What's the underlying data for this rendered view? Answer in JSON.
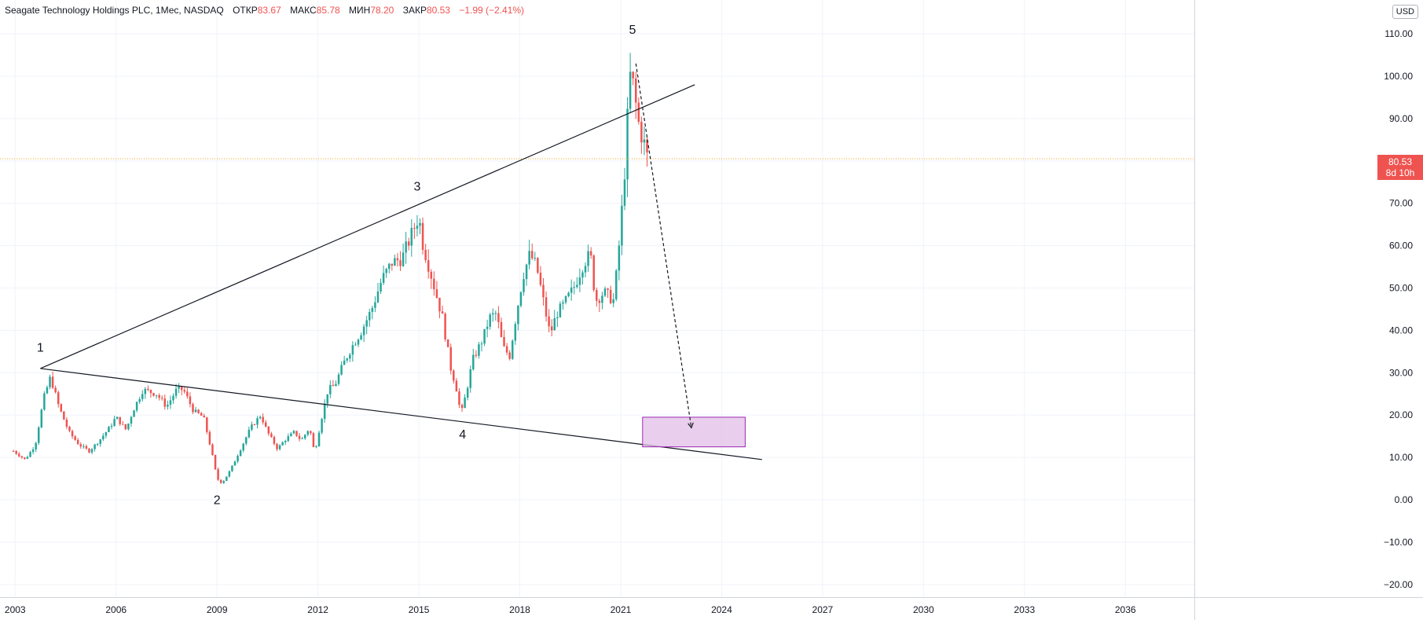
{
  "legend": {
    "title": "Seagate Technology Holdings PLC, 1Мес, NASDAQ",
    "open_label": "ОТКР",
    "open": "83.67",
    "high_label": "МАКС",
    "high": "85.78",
    "low_label": "МИН",
    "low": "78.20",
    "close_label": "ЗАКР",
    "close": "80.53",
    "change": "−1.99 (−2.41%)"
  },
  "currency": "USD",
  "last_price": {
    "value": "80.53",
    "countdown": "8d 10h",
    "color": "#ef5350"
  },
  "colors": {
    "up": "#26a69a",
    "down": "#ef5350",
    "zone": "#e1bee7",
    "zone_border": "#9c27b0",
    "price_line": "#f5a623"
  },
  "chart_data": {
    "type": "candlestick",
    "interval": "1M",
    "ylim": [
      -23,
      118
    ],
    "xlim": [
      2002.55,
      2038.05
    ],
    "y_ticks": [
      {
        "v": 110,
        "label": "110.00"
      },
      {
        "v": 100,
        "label": "100.00"
      },
      {
        "v": 90,
        "label": "90.00"
      },
      {
        "v": 80,
        "label": "80.00"
      },
      {
        "v": 70,
        "label": "70.00"
      },
      {
        "v": 60,
        "label": "60.00"
      },
      {
        "v": 50,
        "label": "50.00"
      },
      {
        "v": 40,
        "label": "40.00"
      },
      {
        "v": 30,
        "label": "30.00"
      },
      {
        "v": 20,
        "label": "20.00"
      },
      {
        "v": 10,
        "label": "10.00"
      },
      {
        "v": 0,
        "label": "0.00"
      },
      {
        "v": -10,
        "label": "−10.00"
      },
      {
        "v": -20,
        "label": "−20.00"
      }
    ],
    "x_ticks": [
      {
        "v": 2003,
        "label": "2003"
      },
      {
        "v": 2006,
        "label": "2006"
      },
      {
        "v": 2009,
        "label": "2009"
      },
      {
        "v": 2012,
        "label": "2012"
      },
      {
        "v": 2015,
        "label": "2015"
      },
      {
        "v": 2018,
        "label": "2018"
      },
      {
        "v": 2021,
        "label": "2021"
      },
      {
        "v": 2024,
        "label": "2024"
      },
      {
        "v": 2027,
        "label": "2027"
      },
      {
        "v": 2030,
        "label": "2030"
      },
      {
        "v": 2033,
        "label": "2033"
      },
      {
        "v": 2036,
        "label": "2036"
      }
    ],
    "close_path": [
      [
        2002.95,
        11.5
      ],
      [
        2003.3,
        9.5
      ],
      [
        2003.6,
        13
      ],
      [
        2003.85,
        24
      ],
      [
        2004.05,
        29
      ],
      [
        2004.3,
        22
      ],
      [
        2004.6,
        16
      ],
      [
        2004.9,
        13
      ],
      [
        2005.2,
        11.5
      ],
      [
        2005.5,
        14
      ],
      [
        2005.8,
        17
      ],
      [
        2006.0,
        19.5
      ],
      [
        2006.3,
        16.5
      ],
      [
        2006.5,
        21
      ],
      [
        2006.8,
        26
      ],
      [
        2007.2,
        25
      ],
      [
        2007.5,
        22
      ],
      [
        2007.8,
        26
      ],
      [
        2008.0,
        26
      ],
      [
        2008.3,
        21
      ],
      [
        2008.6,
        19.5
      ],
      [
        2008.85,
        11
      ],
      [
        2009.0,
        5
      ],
      [
        2009.15,
        4
      ],
      [
        2009.4,
        7
      ],
      [
        2009.7,
        12
      ],
      [
        2010.0,
        17
      ],
      [
        2010.3,
        20
      ],
      [
        2010.5,
        16
      ],
      [
        2010.8,
        12
      ],
      [
        2011.0,
        14
      ],
      [
        2011.3,
        16
      ],
      [
        2011.5,
        14
      ],
      [
        2011.75,
        17
      ],
      [
        2011.9,
        11
      ],
      [
        2012.1,
        19
      ],
      [
        2012.3,
        26
      ],
      [
        2012.5,
        27
      ],
      [
        2012.75,
        32
      ],
      [
        2013.0,
        36
      ],
      [
        2013.3,
        40
      ],
      [
        2013.6,
        45
      ],
      [
        2013.9,
        52
      ],
      [
        2014.2,
        56
      ],
      [
        2014.5,
        57
      ],
      [
        2014.8,
        63
      ],
      [
        2015.0,
        67
      ],
      [
        2015.1,
        61
      ],
      [
        2015.4,
        52
      ],
      [
        2015.7,
        43
      ],
      [
        2015.95,
        31
      ],
      [
        2016.1,
        27
      ],
      [
        2016.25,
        20
      ],
      [
        2016.4,
        25
      ],
      [
        2016.6,
        33
      ],
      [
        2016.9,
        38
      ],
      [
        2017.1,
        43
      ],
      [
        2017.3,
        44
      ],
      [
        2017.5,
        36
      ],
      [
        2017.7,
        34
      ],
      [
        2017.9,
        44
      ],
      [
        2018.1,
        53
      ],
      [
        2018.3,
        58
      ],
      [
        2018.5,
        55
      ],
      [
        2018.7,
        47
      ],
      [
        2018.9,
        39
      ],
      [
        2019.1,
        44
      ],
      [
        2019.3,
        46
      ],
      [
        2019.6,
        50
      ],
      [
        2019.9,
        56
      ],
      [
        2020.1,
        58
      ],
      [
        2020.25,
        47
      ],
      [
        2020.5,
        49
      ],
      [
        2020.8,
        47
      ],
      [
        2020.95,
        60
      ],
      [
        2021.1,
        75
      ],
      [
        2021.2,
        90
      ],
      [
        2021.3,
        102
      ],
      [
        2021.4,
        96
      ],
      [
        2021.55,
        88
      ],
      [
        2021.7,
        84
      ],
      [
        2021.8,
        80.5
      ]
    ],
    "wave_labels": [
      {
        "label": "1",
        "x": 2003.75,
        "y": 35
      },
      {
        "label": "2",
        "x": 2009.0,
        "y": -1
      },
      {
        "label": "3",
        "x": 2014.95,
        "y": 73
      },
      {
        "label": "4",
        "x": 2016.3,
        "y": 14.5
      },
      {
        "label": "5",
        "x": 2021.35,
        "y": 110
      }
    ],
    "upper_trendline": [
      [
        2003.75,
        31
      ],
      [
        2023.2,
        98
      ]
    ],
    "lower_trendline": [
      [
        2003.75,
        31
      ],
      [
        2025.2,
        9.5
      ]
    ],
    "projection_line": [
      [
        2021.45,
        103
      ],
      [
        2023.1,
        17
      ]
    ],
    "target_zone": {
      "x1": 2021.65,
      "x2": 2024.7,
      "y1": 12.5,
      "y2": 19.5
    },
    "last_price": 80.53
  }
}
